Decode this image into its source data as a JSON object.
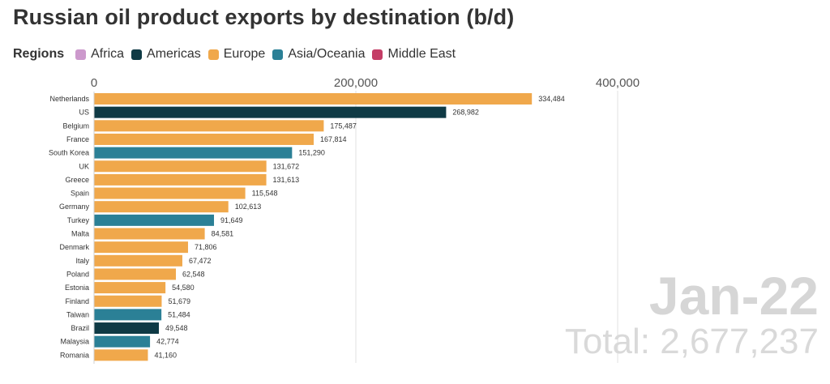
{
  "title": "Russian oil product exports by destination (b/d)",
  "legend": {
    "title": "Regions",
    "items": [
      {
        "label": "Africa",
        "color": "#cc99cc"
      },
      {
        "label": "Americas",
        "color": "#0f3a45"
      },
      {
        "label": "Europe",
        "color": "#f0a84b"
      },
      {
        "label": "Asia/Oceania",
        "color": "#2b8096"
      },
      {
        "label": "Middle East",
        "color": "#c43d66"
      }
    ]
  },
  "period": "Jan-22",
  "total_text": "Total: 2,677,237",
  "chart_data": {
    "type": "bar",
    "orientation": "horizontal",
    "title": "Russian oil product exports by destination (b/d)",
    "xlim": [
      0,
      400000
    ],
    "x_ticks": [
      0,
      200000,
      400000
    ],
    "x_tick_labels": [
      "0",
      "200,000",
      "400,000"
    ],
    "grid": true,
    "categories": [
      "Netherlands",
      "US",
      "Belgium",
      "France",
      "South Korea",
      "UK",
      "Greece",
      "Spain",
      "Germany",
      "Turkey",
      "Malta",
      "Denmark",
      "Italy",
      "Poland",
      "Estonia",
      "Finland",
      "Taiwan",
      "Brazil",
      "Malaysia",
      "Romania"
    ],
    "values": [
      334484,
      268982,
      175487,
      167814,
      151290,
      131672,
      131613,
      115548,
      102613,
      91649,
      84581,
      71806,
      67472,
      62548,
      54580,
      51679,
      51484,
      49548,
      42774,
      41160
    ],
    "value_labels": [
      "334,484",
      "268,982",
      "175,487",
      "167,814",
      "151,290",
      "131,672",
      "131,613",
      "115,548",
      "102,613",
      "91,649",
      "84,581",
      "71,806",
      "67,472",
      "62,548",
      "54,580",
      "51,679",
      "51,484",
      "49,548",
      "42,774",
      "41,160"
    ],
    "regions": [
      "Europe",
      "Americas",
      "Europe",
      "Europe",
      "Asia/Oceania",
      "Europe",
      "Europe",
      "Europe",
      "Europe",
      "Asia/Oceania",
      "Europe",
      "Europe",
      "Europe",
      "Europe",
      "Europe",
      "Europe",
      "Asia/Oceania",
      "Americas",
      "Asia/Oceania",
      "Europe"
    ]
  }
}
